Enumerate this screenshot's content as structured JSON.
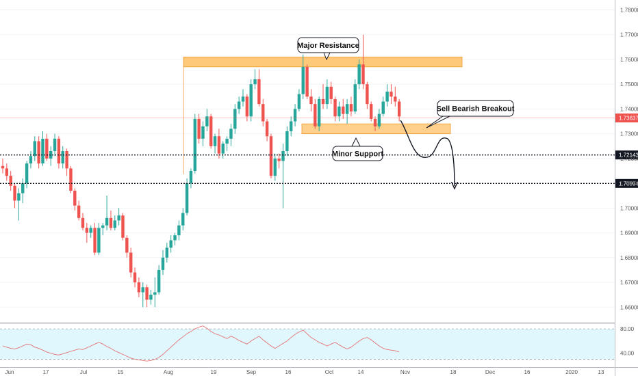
{
  "chart_data": {
    "type": "candlestick",
    "price_axis": {
      "labels": [
        "1.78000",
        "1.77000",
        "1.76000",
        "1.75000",
        "1.74000",
        "1.73000",
        "1.72000",
        "1.71000",
        "1.70000",
        "1.69000",
        "1.68000",
        "1.67000",
        "1.66000"
      ],
      "range": [
        1.654,
        1.784
      ]
    },
    "time_axis": {
      "labels": [
        "Jun",
        "17",
        "Jul",
        "15",
        "Aug",
        "19",
        "Sep",
        "16",
        "Oct",
        "14",
        "Nov",
        "18",
        "Dec",
        "16",
        "2020",
        "13"
      ]
    },
    "candles": [
      [
        1.717,
        1.72,
        1.714,
        1.716
      ],
      [
        1.716,
        1.718,
        1.711,
        1.713
      ],
      [
        1.713,
        1.715,
        1.707,
        1.709
      ],
      [
        1.709,
        1.71,
        1.7,
        1.703
      ],
      [
        1.703,
        1.708,
        1.695,
        1.706
      ],
      [
        1.706,
        1.712,
        1.702,
        1.71
      ],
      [
        1.71,
        1.719,
        1.708,
        1.718
      ],
      [
        1.718,
        1.723,
        1.716,
        1.721
      ],
      [
        1.721,
        1.729,
        1.719,
        1.727
      ],
      [
        1.727,
        1.729,
        1.716,
        1.718
      ],
      [
        1.718,
        1.731,
        1.717,
        1.728
      ],
      [
        1.728,
        1.73,
        1.719,
        1.72
      ],
      [
        1.72,
        1.725,
        1.717,
        1.723
      ],
      [
        1.723,
        1.73,
        1.721,
        1.728
      ],
      [
        1.728,
        1.729,
        1.716,
        1.718
      ],
      [
        1.718,
        1.725,
        1.716,
        1.723
      ],
      [
        1.723,
        1.724,
        1.713,
        1.716
      ],
      [
        1.716,
        1.717,
        1.706,
        1.707
      ],
      [
        1.707,
        1.708,
        1.699,
        1.701
      ],
      [
        1.701,
        1.703,
        1.695,
        1.696
      ],
      [
        1.696,
        1.698,
        1.691,
        1.692
      ],
      [
        1.692,
        1.694,
        1.686,
        1.69
      ],
      [
        1.69,
        1.693,
        1.688,
        1.692
      ],
      [
        1.692,
        1.694,
        1.681,
        1.682
      ],
      [
        1.682,
        1.694,
        1.681,
        1.692
      ],
      [
        1.692,
        1.694,
        1.689,
        1.693
      ],
      [
        1.693,
        1.705,
        1.691,
        1.696
      ],
      [
        1.696,
        1.699,
        1.691,
        1.692
      ],
      [
        1.692,
        1.697,
        1.691,
        1.695
      ],
      [
        1.695,
        1.7,
        1.693,
        1.697
      ],
      [
        1.697,
        1.698,
        1.687,
        1.688
      ],
      [
        1.688,
        1.689,
        1.68,
        1.682
      ],
      [
        1.682,
        1.684,
        1.672,
        1.674
      ],
      [
        1.674,
        1.676,
        1.668,
        1.67
      ],
      [
        1.67,
        1.672,
        1.664,
        1.666
      ],
      [
        1.666,
        1.67,
        1.66,
        1.668
      ],
      [
        1.668,
        1.669,
        1.66,
        1.663
      ],
      [
        1.663,
        1.667,
        1.661,
        1.665
      ],
      [
        1.665,
        1.672,
        1.66,
        1.666
      ],
      [
        1.666,
        1.677,
        1.665,
        1.675
      ],
      [
        1.675,
        1.683,
        1.673,
        1.68
      ],
      [
        1.68,
        1.686,
        1.678,
        1.684
      ],
      [
        1.684,
        1.689,
        1.682,
        1.687
      ],
      [
        1.687,
        1.69,
        1.685,
        1.689
      ],
      [
        1.689,
        1.695,
        1.687,
        1.693
      ],
      [
        1.693,
        1.7,
        1.691,
        1.698
      ],
      [
        1.698,
        1.712,
        1.697,
        1.71
      ],
      [
        1.71,
        1.716,
        1.708,
        1.715
      ],
      [
        1.715,
        1.738,
        1.714,
        1.736
      ],
      [
        1.736,
        1.738,
        1.726,
        1.728
      ],
      [
        1.728,
        1.735,
        1.725,
        1.733
      ],
      [
        1.733,
        1.74,
        1.731,
        1.737
      ],
      [
        1.737,
        1.738,
        1.724,
        1.725
      ],
      [
        1.725,
        1.73,
        1.722,
        1.729
      ],
      [
        1.729,
        1.732,
        1.72,
        1.722
      ],
      [
        1.722,
        1.727,
        1.72,
        1.726
      ],
      [
        1.726,
        1.729,
        1.723,
        1.728
      ],
      [
        1.728,
        1.734,
        1.725,
        1.732
      ],
      [
        1.732,
        1.742,
        1.73,
        1.74
      ],
      [
        1.74,
        1.745,
        1.738,
        1.743
      ],
      [
        1.743,
        1.748,
        1.741,
        1.745
      ],
      [
        1.745,
        1.746,
        1.735,
        1.737
      ],
      [
        1.737,
        1.752,
        1.735,
        1.75
      ],
      [
        1.75,
        1.756,
        1.748,
        1.752
      ],
      [
        1.752,
        1.756,
        1.741,
        1.742
      ],
      [
        1.742,
        1.744,
        1.733,
        1.735
      ],
      [
        1.735,
        1.736,
        1.727,
        1.729
      ],
      [
        1.729,
        1.73,
        1.712,
        1.713
      ],
      [
        1.713,
        1.722,
        1.711,
        1.72
      ],
      [
        1.72,
        1.722,
        1.716,
        1.719
      ],
      [
        1.719,
        1.726,
        1.7,
        1.723
      ],
      [
        1.723,
        1.733,
        1.721,
        1.731
      ],
      [
        1.731,
        1.737,
        1.729,
        1.735
      ],
      [
        1.735,
        1.742,
        1.733,
        1.74
      ],
      [
        1.74,
        1.748,
        1.739,
        1.746
      ],
      [
        1.746,
        1.762,
        1.744,
        1.757
      ],
      [
        1.757,
        1.758,
        1.744,
        1.745
      ],
      [
        1.745,
        1.748,
        1.739,
        1.742
      ],
      [
        1.742,
        1.744,
        1.732,
        1.733
      ],
      [
        1.733,
        1.745,
        1.731,
        1.744
      ],
      [
        1.744,
        1.75,
        1.74,
        1.742
      ],
      [
        1.742,
        1.752,
        1.74,
        1.749
      ],
      [
        1.749,
        1.751,
        1.742,
        1.744
      ],
      [
        1.744,
        1.745,
        1.735,
        1.737
      ],
      [
        1.737,
        1.743,
        1.735,
        1.741
      ],
      [
        1.741,
        1.744,
        1.736,
        1.738
      ],
      [
        1.738,
        1.744,
        1.734,
        1.742
      ],
      [
        1.742,
        1.745,
        1.737,
        1.739
      ],
      [
        1.739,
        1.752,
        1.738,
        1.75
      ],
      [
        1.75,
        1.76,
        1.748,
        1.758
      ],
      [
        1.758,
        1.77,
        1.748,
        1.75
      ],
      [
        1.75,
        1.751,
        1.74,
        1.742
      ],
      [
        1.742,
        1.743,
        1.735,
        1.736
      ],
      [
        1.736,
        1.737,
        1.731,
        1.733
      ],
      [
        1.733,
        1.74,
        1.732,
        1.738
      ],
      [
        1.738,
        1.745,
        1.737,
        1.743
      ],
      [
        1.743,
        1.75,
        1.741,
        1.747
      ],
      [
        1.747,
        1.75,
        1.742,
        1.745
      ],
      [
        1.745,
        1.749,
        1.741,
        1.743
      ],
      [
        1.743,
        1.744,
        1.735,
        1.737
      ]
    ],
    "resistance_zone": [
      1.757,
      1.761
    ],
    "support_zone": [
      1.73,
      1.734
    ],
    "levels": [
      {
        "label": "1.72143",
        "value": 1.72143
      },
      {
        "label": "1.70994",
        "value": 1.70994
      }
    ],
    "current_price": {
      "label": "1.73637",
      "value": 1.73637
    },
    "annotations": [
      "Major Resistance",
      "Minor Support",
      "Sell Bearish Breakout"
    ],
    "oscillator": {
      "labels": [
        "80.00",
        "40.00"
      ],
      "bands": [
        30,
        80
      ],
      "range": [
        25,
        88
      ],
      "values": [
        52,
        50,
        48,
        47,
        49,
        52,
        55,
        54,
        50,
        48,
        45,
        42,
        40,
        38,
        37,
        39,
        41,
        43,
        45,
        47,
        46,
        49,
        52,
        55,
        58,
        55,
        51,
        48,
        44,
        41,
        38,
        35,
        32,
        30,
        29,
        28,
        27,
        28,
        30,
        33,
        38,
        44,
        50,
        56,
        62,
        67,
        72,
        76,
        80,
        83,
        85,
        81,
        76,
        72,
        70,
        67,
        64,
        68,
        65,
        61,
        58,
        55,
        60,
        64,
        68,
        62,
        57,
        52,
        48,
        52,
        56,
        60,
        66,
        71,
        75,
        78,
        72,
        66,
        62,
        58,
        55,
        52,
        55,
        58,
        54,
        50,
        47,
        50,
        55,
        60,
        64,
        66,
        62,
        57,
        52,
        48,
        46,
        45,
        44,
        42
      ]
    },
    "colors": {
      "up": "#26a69a",
      "down": "#ef5350",
      "zone": "#ffb74d",
      "oscillator_line": "#e57373",
      "oscillator_band": "#dff7fd",
      "current_price": "#ef5350"
    }
  }
}
